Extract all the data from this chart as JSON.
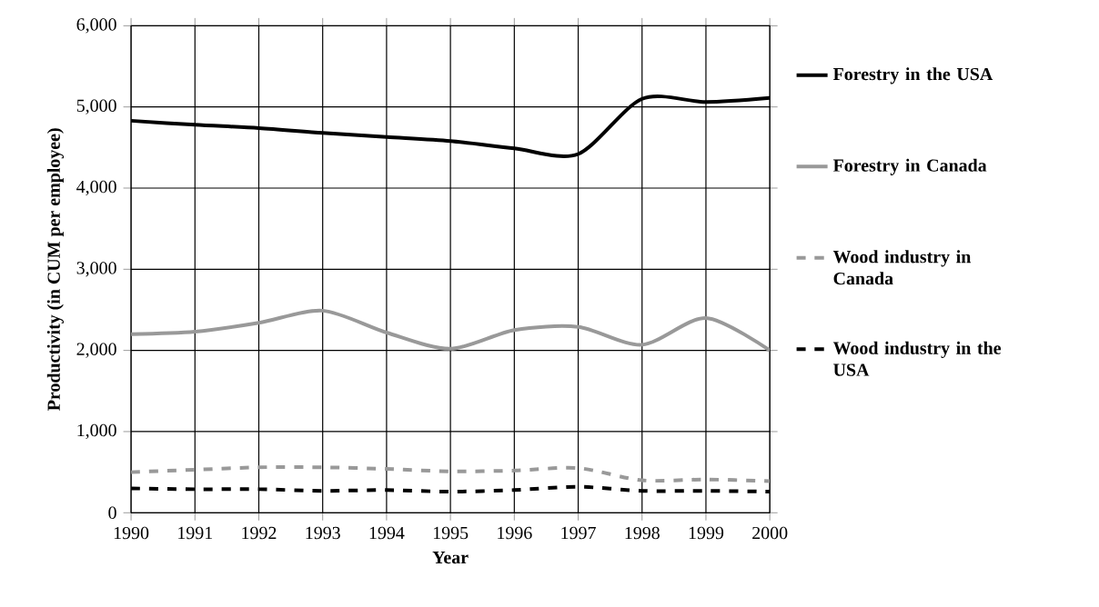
{
  "chart_data": {
    "type": "line",
    "xlabel": "Year",
    "ylabel": "Productivity (in CUM per employee)",
    "x": [
      1990,
      1991,
      1992,
      1993,
      1994,
      1995,
      1996,
      1997,
      1998,
      1999,
      2000
    ],
    "xlim": [
      1990,
      2000
    ],
    "xticks": [
      1990,
      1991,
      1992,
      1993,
      1994,
      1995,
      1996,
      1997,
      1998,
      1999,
      2000
    ],
    "ylim": [
      0,
      6000
    ],
    "yticks": [
      {
        "value": 0,
        "label": "0"
      },
      {
        "value": 1000,
        "label": "1,000"
      },
      {
        "value": 2000,
        "label": "2,000"
      },
      {
        "value": 3000,
        "label": "3,000"
      },
      {
        "value": 4000,
        "label": "4,000"
      },
      {
        "value": 5000,
        "label": "5,000"
      },
      {
        "value": 6000,
        "label": "6,000"
      }
    ],
    "grid": true,
    "legend": "right",
    "marker": "none",
    "series": [
      {
        "name": "Forestry in the USA",
        "color": "#000000",
        "line_style": "solid",
        "values": [
          4830,
          4780,
          4740,
          4680,
          4630,
          4580,
          4490,
          4420,
          5100,
          5060,
          5110
        ]
      },
      {
        "name": "Forestry in Canada",
        "color": "#999999",
        "line_style": "solid",
        "values": [
          2200,
          2230,
          2340,
          2490,
          2220,
          2020,
          2250,
          2290,
          2070,
          2400,
          2000
        ]
      },
      {
        "name": "Wood industry in Canada",
        "color": "#999999",
        "line_style": "dashed",
        "values": [
          500,
          530,
          560,
          560,
          540,
          510,
          520,
          550,
          400,
          410,
          390
        ]
      },
      {
        "name": "Wood industry in the USA",
        "color": "#000000",
        "line_style": "dashed",
        "values": [
          300,
          290,
          290,
          270,
          280,
          260,
          280,
          320,
          270,
          270,
          260
        ]
      }
    ]
  }
}
